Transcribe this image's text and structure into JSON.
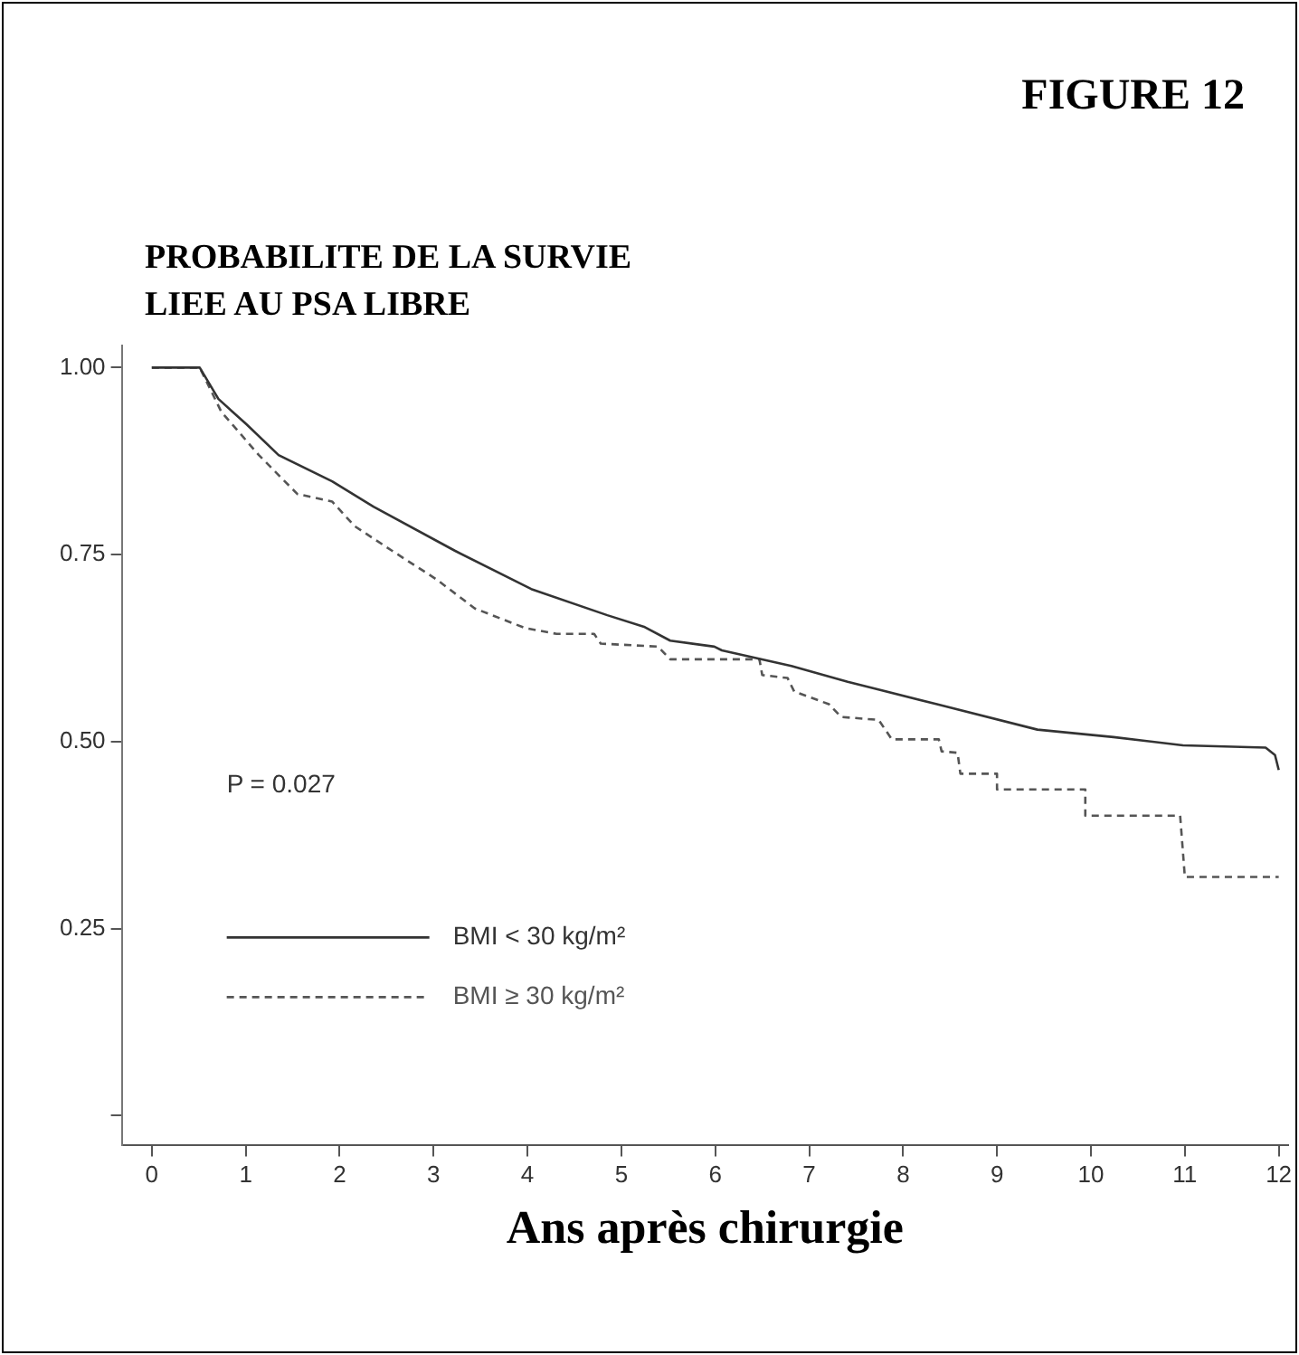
{
  "chart_data": {
    "type": "line",
    "title": "FIGURE 12",
    "ylabel": "PROBABILITE DE LA SURVIE LIEE AU PSA LIBRE",
    "xlabel": "Ans après chirurgie",
    "xlim": [
      -0.32,
      12.1
    ],
    "xticks": [
      0,
      1,
      2,
      3,
      4,
      5,
      6,
      7,
      8,
      9,
      10,
      11,
      12
    ],
    "ylim": [
      -0.04,
      1.03
    ],
    "yticks": [
      {
        "value": 0,
        "label": null
      },
      {
        "value": 0.25,
        "label": "0.25"
      },
      {
        "value": 0.5,
        "label": "0.50"
      },
      {
        "value": 0.75,
        "label": "0.75"
      },
      {
        "value": 1,
        "label": "1.00"
      }
    ],
    "grid": false,
    "legend": "bottom left",
    "marker": "none",
    "annotations": [
      "P = 0.027"
    ],
    "series": [
      {
        "name": "BMI < 30 kg/m²",
        "color": "#333333",
        "line_style": "solid",
        "x": [
          0,
          0.51,
          0.71,
          1.01,
          1.35,
          1.92,
          2.36,
          3.23,
          4.04,
          4.85,
          5.25,
          5.52,
          5.99,
          6.07,
          6.81,
          7.41,
          8.36,
          9.43,
          10.24,
          10.98,
          11.86,
          11.96,
          12
        ],
        "values": [
          1,
          1,
          0.958,
          0.924,
          0.883,
          0.848,
          0.814,
          0.755,
          0.704,
          0.669,
          0.653,
          0.635,
          0.627,
          0.622,
          0.601,
          0.58,
          0.55,
          0.516,
          0.506,
          0.495,
          0.492,
          0.482,
          0.462
        ]
      },
      {
        "name": "BMI ≥ 30 kg/m²",
        "color": "#555555",
        "line_style": "dashed",
        "x": [
          0,
          0.51,
          0.74,
          1.14,
          1.55,
          1.92,
          2.16,
          2.56,
          3.03,
          3.44,
          3.97,
          4.31,
          4.71,
          4.78,
          5.39,
          5.52,
          5.99,
          6.47,
          6.5,
          6.77,
          6.84,
          7.21,
          7.34,
          7.74,
          7.88,
          8.38,
          8.41,
          8.58,
          8.61,
          9,
          9,
          9.94,
          9.94,
          10.95,
          11,
          12
        ],
        "values": [
          1,
          1,
          0.941,
          0.883,
          0.831,
          0.821,
          0.788,
          0.755,
          0.717,
          0.678,
          0.652,
          0.644,
          0.644,
          0.631,
          0.627,
          0.61,
          0.61,
          0.61,
          0.589,
          0.585,
          0.567,
          0.55,
          0.533,
          0.529,
          0.503,
          0.503,
          0.487,
          0.485,
          0.457,
          0.457,
          0.436,
          0.436,
          0.401,
          0.401,
          0.319,
          0.319
        ]
      }
    ]
  }
}
